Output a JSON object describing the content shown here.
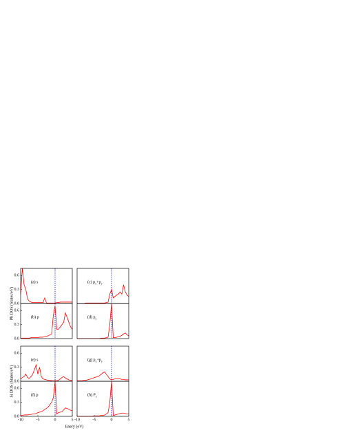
{
  "chart_data": [
    {
      "type": "line",
      "label": [
        "(a) s"
      ],
      "ylabel": "Pb DOS (States/eV)",
      "color": "#ff0000",
      "vline": 0,
      "vline_color": "#3333cc",
      "xlim": [
        -10,
        5
      ],
      "ylim": [
        0,
        0.75
      ],
      "yticks": [
        {
          "value": 0,
          "label": "0.0"
        },
        0.3,
        0.6
      ],
      "x": [
        -10,
        -9.5,
        -9,
        -8.5,
        -8,
        -7.5,
        -7,
        -6.5,
        -6,
        -5.5,
        -5,
        -4.5,
        -4,
        -3.5,
        -3,
        -2.5,
        -2,
        -1.5,
        -1,
        -0.5,
        0,
        0.5,
        1,
        1.5,
        2,
        2.5,
        3,
        3.5,
        4,
        4.5,
        5
      ],
      "values": [
        0.2,
        0.75,
        0.4,
        0.3,
        0.1,
        0.05,
        0.03,
        0.02,
        0.02,
        0.02,
        0.02,
        0.02,
        0.02,
        0.02,
        0.12,
        0.01,
        0.01,
        0.01,
        0.01,
        0.01,
        0.01,
        0.02,
        0.02,
        0.03,
        0.03,
        0.03,
        0.03,
        0.03,
        0.03,
        0.03,
        0.03
      ]
    },
    {
      "type": "line",
      "label": [
        "(b) p"
      ],
      "color": "#ff0000",
      "vline": 0,
      "vline_color": "#3333cc",
      "xlim": [
        -10,
        5
      ],
      "ylim": [
        0,
        0.75
      ],
      "yticks": [
        {
          "value": 0,
          "label": "0.0"
        },
        0.3,
        0.6
      ],
      "x": [
        -10,
        -9.5,
        -9,
        -8.5,
        -8,
        -7.5,
        -7,
        -6.5,
        -6,
        -5.5,
        -5,
        -4.5,
        -4,
        -3.5,
        -3,
        -2.5,
        -2,
        -1.5,
        -1,
        -0.5,
        0,
        0.5,
        1,
        1.5,
        2,
        2.5,
        3,
        3.5,
        4,
        4.5,
        5
      ],
      "values": [
        0,
        0.01,
        0.01,
        0.01,
        0.01,
        0.01,
        0.02,
        0.02,
        0.02,
        0.02,
        0.02,
        0.03,
        0.03,
        0.03,
        0.04,
        0.05,
        0.06,
        0.08,
        0.1,
        0.5,
        0.7,
        0.2,
        0.2,
        0.25,
        0.3,
        0.35,
        0.55,
        0.45,
        0.35,
        0.25,
        0.2
      ]
    },
    {
      "type": "line",
      "label": [
        "(c) p",
        "x",
        "+p",
        "y"
      ],
      "color": "#ff0000",
      "vline": 0,
      "vline_color": "#3333cc",
      "xlim": [
        -10,
        5
      ],
      "ylim": [
        0,
        0.75
      ],
      "x": [
        -10,
        -9.5,
        -9,
        -8.5,
        -8,
        -7.5,
        -7,
        -6.5,
        -6,
        -5.5,
        -5,
        -4.5,
        -4,
        -3.5,
        -3,
        -2.5,
        -2,
        -1.5,
        -1,
        -0.5,
        0,
        0.5,
        1,
        1.5,
        2,
        2.5,
        3,
        3.5,
        4,
        4.5,
        5
      ],
      "values": [
        0,
        0,
        0,
        0,
        0,
        0.01,
        0.01,
        0.01,
        0.01,
        0.01,
        0.01,
        0.01,
        0.01,
        0.01,
        0.01,
        0.01,
        0.01,
        0.02,
        0.03,
        0.2,
        0.3,
        0.12,
        0.15,
        0.18,
        0.2,
        0.25,
        0.2,
        0.4,
        0.25,
        0.18,
        0.15
      ]
    },
    {
      "type": "line",
      "label": [
        "(d) p",
        "z"
      ],
      "color": "#ff0000",
      "vline": 0,
      "vline_color": "#3333cc",
      "xlim": [
        -10,
        5
      ],
      "ylim": [
        0,
        0.75
      ],
      "x": [
        -10,
        -9.5,
        -9,
        -8.5,
        -8,
        -7.5,
        -7,
        -6.5,
        -6,
        -5.5,
        -5,
        -4.5,
        -4,
        -3.5,
        -3,
        -2.5,
        -2,
        -1.5,
        -1,
        -0.5,
        0,
        0.5,
        1,
        1.5,
        2,
        2.5,
        3,
        3.5,
        4,
        4.5,
        5
      ],
      "values": [
        0,
        0,
        0,
        0,
        0,
        0,
        0,
        0,
        0,
        0,
        0,
        0,
        0,
        0,
        0.01,
        0.01,
        0.01,
        0.02,
        0.03,
        0.3,
        0.75,
        0.02,
        0.02,
        0.03,
        0.04,
        0.05,
        0.07,
        0.1,
        0.12,
        0.08,
        0.06
      ]
    },
    {
      "type": "line",
      "label": [
        "(e) s"
      ],
      "ylabel": "Si DOS (States/eV)",
      "color": "#ff0000",
      "vline": 0,
      "vline_color": "#3333cc",
      "xlim": [
        -10,
        5
      ],
      "ylim": [
        0,
        0.75
      ],
      "yticks": [
        {
          "value": 0,
          "label": "0.0"
        },
        0.3,
        0.6
      ],
      "x": [
        -10,
        -9.5,
        -9,
        -8.5,
        -8,
        -7.5,
        -7,
        -6.5,
        -6,
        -5.5,
        -5,
        -4.5,
        -4,
        -3.5,
        -3,
        -2.5,
        -2,
        -1.5,
        -1,
        -0.5,
        0,
        0.5,
        1,
        1.5,
        2,
        2.5,
        3,
        3.5,
        4,
        4.5,
        5
      ],
      "values": [
        0.05,
        0.08,
        0.1,
        0.15,
        0.08,
        0.06,
        0.1,
        0.15,
        0.25,
        0.35,
        0.15,
        0.3,
        0.1,
        0.05,
        0.04,
        0.03,
        0.02,
        0.02,
        0.01,
        0.01,
        0.01,
        0.01,
        0.02,
        0.05,
        0.08,
        0.1,
        0.07,
        0.05,
        0.03,
        0.02,
        0.02
      ]
    },
    {
      "type": "line",
      "label": [
        "(f) p"
      ],
      "xlabel": "Enery (eV)",
      "color": "#ff0000",
      "vline": 0,
      "vline_color": "#3333cc",
      "xlim": [
        -10,
        5
      ],
      "ylim": [
        0,
        0.75
      ],
      "yticks": [
        {
          "value": 0,
          "label": "0.0"
        },
        0.3,
        0.6
      ],
      "xticks": [
        -10,
        -5,
        0,
        5
      ],
      "x": [
        -10,
        -9.5,
        -9,
        -8.5,
        -8,
        -7.5,
        -7,
        -6.5,
        -6,
        -5.5,
        -5,
        -4.5,
        -4,
        -3.5,
        -3,
        -2.5,
        -2,
        -1.5,
        -1,
        -0.5,
        0,
        0.5,
        1,
        1.5,
        2,
        2.5,
        3,
        3.5,
        4,
        4.5,
        5
      ],
      "values": [
        0.02,
        0.02,
        0.03,
        0.03,
        0.03,
        0.04,
        0.04,
        0.05,
        0.05,
        0.06,
        0.08,
        0.09,
        0.1,
        0.12,
        0.15,
        0.17,
        0.2,
        0.25,
        0.3,
        0.4,
        0.75,
        0.05,
        0.08,
        0.09,
        0.1,
        0.14,
        0.18,
        0.17,
        0.15,
        0.13,
        0.12
      ]
    },
    {
      "type": "line",
      "label": [
        "(g) p",
        "x",
        "+p",
        "y"
      ],
      "color": "#ff0000",
      "vline": 0,
      "vline_color": "#3333cc",
      "xlim": [
        -10,
        5
      ],
      "ylim": [
        0,
        0.75
      ],
      "x": [
        -10,
        -9.5,
        -9,
        -8.5,
        -8,
        -7.5,
        -7,
        -6.5,
        -6,
        -5.5,
        -5,
        -4.5,
        -4,
        -3.5,
        -3,
        -2.5,
        -2,
        -1.5,
        -1,
        -0.5,
        0,
        0.5,
        1,
        1.5,
        2,
        2.5,
        3,
        3.5,
        4,
        4.5,
        5
      ],
      "values": [
        0.01,
        0.01,
        0.01,
        0.01,
        0.02,
        0.02,
        0.03,
        0.04,
        0.05,
        0.06,
        0.08,
        0.09,
        0.1,
        0.12,
        0.15,
        0.18,
        0.2,
        0.15,
        0.1,
        0.05,
        0.03,
        0.04,
        0.05,
        0.05,
        0.06,
        0.05,
        0.04,
        0.04,
        0.03,
        0.03,
        0.03
      ]
    },
    {
      "type": "line",
      "label": [
        "(h) P",
        "z"
      ],
      "color": "#ff0000",
      "vline": 0,
      "vline_color": "#3333cc",
      "xlim": [
        -10,
        5
      ],
      "ylim": [
        0,
        0.75
      ],
      "xticks": [
        -10,
        -5,
        0,
        5
      ],
      "x": [
        -10,
        -9.5,
        -9,
        -8.5,
        -8,
        -7.5,
        -7,
        -6.5,
        -6,
        -5.5,
        -5,
        -4.5,
        -4,
        -3.5,
        -3,
        -2.5,
        -2,
        -1.5,
        -1,
        -0.5,
        0,
        0.5,
        1,
        1.5,
        2,
        2.5,
        3,
        3.5,
        4,
        4.5,
        5
      ],
      "values": [
        0,
        0,
        0,
        0,
        0,
        0,
        0,
        0,
        0,
        0,
        0.01,
        0.01,
        0.01,
        0.01,
        0.02,
        0.02,
        0.03,
        0.05,
        0.08,
        0.3,
        0.75,
        0.02,
        0.03,
        0.04,
        0.05,
        0.06,
        0.07,
        0.07,
        0.06,
        0.05,
        0.05
      ]
    }
  ]
}
